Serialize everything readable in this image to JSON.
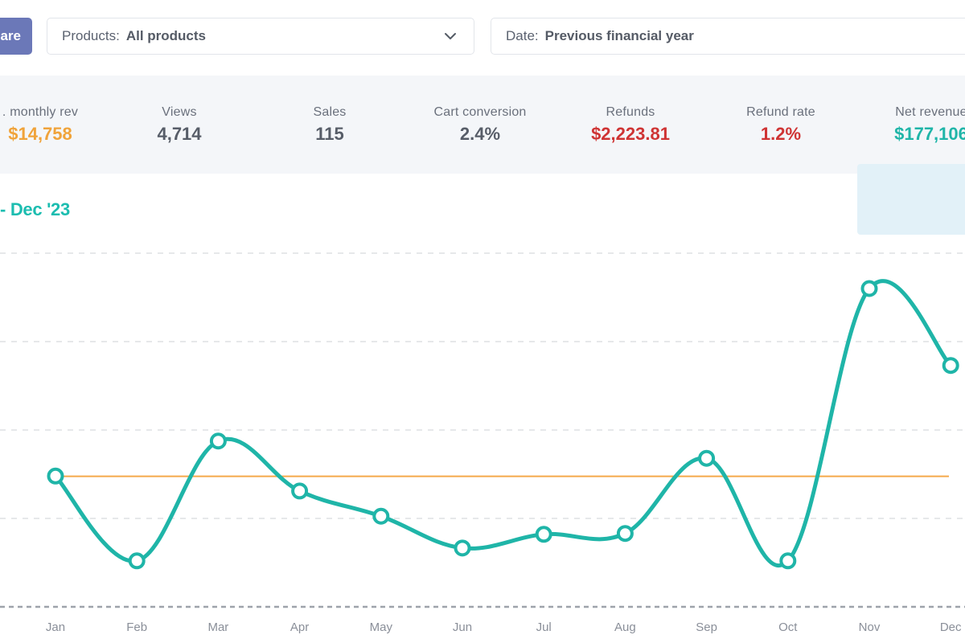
{
  "toolbar": {
    "compare_label": "are",
    "products_filter": {
      "key": "Products:",
      "value": "All products"
    },
    "date_filter": {
      "key": "Date:",
      "value": "Previous financial year"
    }
  },
  "stats": [
    {
      "id": "avg-monthly-rev",
      "label": ". monthly rev",
      "value": "$14,758",
      "tone": "orange"
    },
    {
      "id": "views",
      "label": "Views",
      "value": "4,714",
      "tone": "default"
    },
    {
      "id": "sales",
      "label": "Sales",
      "value": "115",
      "tone": "default"
    },
    {
      "id": "cart-conversion",
      "label": "Cart conversion",
      "value": "2.4%",
      "tone": "default"
    },
    {
      "id": "refunds",
      "label": "Refunds",
      "value": "$2,223.81",
      "tone": "red"
    },
    {
      "id": "refund-rate",
      "label": "Refund rate",
      "value": "1.2%",
      "tone": "red"
    },
    {
      "id": "net-revenue",
      "label": "Net revenue",
      "value": "$177,106",
      "tone": "teal"
    }
  ],
  "chart": {
    "range_title": "- Dec '23"
  },
  "chart_data": {
    "type": "line",
    "categories": [
      "Jan",
      "Feb",
      "Mar",
      "Apr",
      "May",
      "Jun",
      "Jul",
      "Aug",
      "Sep",
      "Oct",
      "Nov",
      "Dec"
    ],
    "series": [
      {
        "values": [
          14790,
          5200,
          18750,
          13100,
          10250,
          6650,
          8200,
          8300,
          16800,
          5200,
          36000,
          27300
        ],
        "color": "#1fb5a8",
        "smooth": true,
        "markers": "hollow-circle"
      }
    ],
    "reference_lines": [
      {
        "value": 14758,
        "color": "#f5a94a"
      }
    ],
    "ylim": [
      0,
      40000
    ],
    "y_gridlines": [
      10000,
      20000,
      30000,
      40000
    ],
    "grid": "dashed-horizontal",
    "tick_labels_y_visible": false
  }
}
